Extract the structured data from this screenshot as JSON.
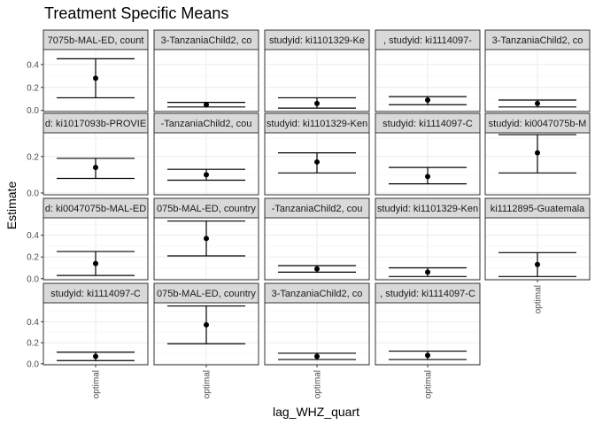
{
  "chart_data": {
    "type": "scatter",
    "title": "Treatment Specific Means",
    "xlabel": "lag_WHZ_quart",
    "ylabel": "Estimate",
    "x_category": "optimal",
    "y_ticks": [
      "0.0",
      "0.2",
      "0.4"
    ],
    "grid": true,
    "facets": [
      {
        "row": 0,
        "col": 0,
        "strip": "7075b-MAL-ED, count",
        "estimate": 0.28,
        "lower": 0.11,
        "upper": 0.45
      },
      {
        "row": 0,
        "col": 1,
        "strip": "3-TanzaniaChild2, co",
        "estimate": 0.05,
        "lower": 0.03,
        "upper": 0.07
      },
      {
        "row": 0,
        "col": 2,
        "strip": "studyid: ki1101329-Ke",
        "estimate": 0.06,
        "lower": 0.02,
        "upper": 0.11
      },
      {
        "row": 0,
        "col": 3,
        "strip": ", studyid: ki1114097-",
        "estimate": 0.09,
        "lower": 0.05,
        "upper": 0.12
      },
      {
        "row": 0,
        "col": 4,
        "strip": "3-TanzaniaChild2, co",
        "estimate": 0.06,
        "lower": 0.03,
        "upper": 0.09
      },
      {
        "row": 1,
        "col": 0,
        "strip": "d: ki1017093b-PROVIE",
        "estimate": 0.14,
        "lower": 0.08,
        "upper": 0.19
      },
      {
        "row": 1,
        "col": 1,
        "strip": "-TanzaniaChild2, cou",
        "estimate": 0.1,
        "lower": 0.07,
        "upper": 0.13
      },
      {
        "row": 1,
        "col": 2,
        "strip": "studyid: ki1101329-Ken",
        "estimate": 0.17,
        "lower": 0.11,
        "upper": 0.22
      },
      {
        "row": 1,
        "col": 3,
        "strip": "studyid: ki1114097-C",
        "estimate": 0.09,
        "lower": 0.05,
        "upper": 0.14
      },
      {
        "row": 1,
        "col": 4,
        "strip": "studyid: ki0047075b-M",
        "estimate": 0.22,
        "lower": 0.11,
        "upper": 0.32
      },
      {
        "row": 2,
        "col": 0,
        "strip": "d: ki0047075b-MAL-ED",
        "estimate": 0.14,
        "lower": 0.03,
        "upper": 0.25
      },
      {
        "row": 2,
        "col": 1,
        "strip": "075b-MAL-ED, country",
        "estimate": 0.37,
        "lower": 0.21,
        "upper": 0.53
      },
      {
        "row": 2,
        "col": 2,
        "strip": "-TanzaniaChild2, cou",
        "estimate": 0.09,
        "lower": 0.06,
        "upper": 0.12
      },
      {
        "row": 2,
        "col": 3,
        "strip": "studyid: ki1101329-Ken",
        "estimate": 0.06,
        "lower": 0.02,
        "upper": 0.1
      },
      {
        "row": 2,
        "col": 4,
        "strip": "ki1112895-Guatemala",
        "estimate": 0.13,
        "lower": 0.02,
        "upper": 0.24
      },
      {
        "row": 3,
        "col": 0,
        "strip": "studyid: ki1114097-C",
        "estimate": 0.07,
        "lower": 0.03,
        "upper": 0.11
      },
      {
        "row": 3,
        "col": 1,
        "strip": "075b-MAL-ED, country",
        "estimate": 0.37,
        "lower": 0.19,
        "upper": 0.55
      },
      {
        "row": 3,
        "col": 2,
        "strip": "3-TanzaniaChild2, co",
        "estimate": 0.07,
        "lower": 0.04,
        "upper": 0.1
      },
      {
        "row": 3,
        "col": 3,
        "strip": ", studyid: ki1114097-C",
        "estimate": 0.08,
        "lower": 0.04,
        "upper": 0.12
      }
    ],
    "rows": [
      {
        "ylim": [
          -0.01,
          0.53
        ]
      },
      {
        "ylim": [
          -0.01,
          0.33
        ]
      },
      {
        "ylim": [
          -0.01,
          0.56
        ]
      },
      {
        "ylim": [
          -0.01,
          0.58
        ]
      }
    ]
  }
}
